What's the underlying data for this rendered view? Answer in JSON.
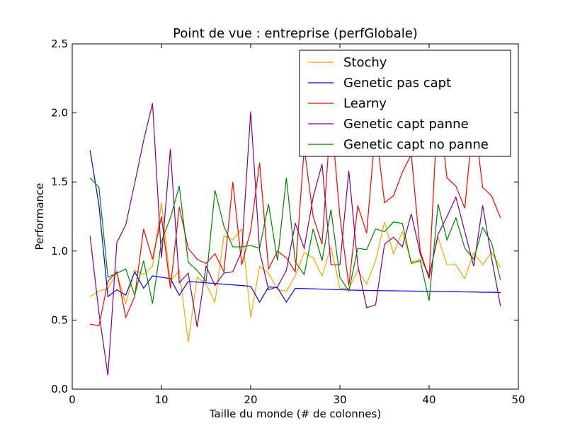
{
  "chart_data": {
    "type": "line",
    "title": "Point de vue : entreprise (perfGlobale)",
    "xlabel": "Taille du monde (# de colonnes)",
    "ylabel": "Performance",
    "xlim": [
      0,
      50
    ],
    "ylim": [
      0,
      2.5
    ],
    "xticks": [
      0,
      10,
      20,
      30,
      40,
      50
    ],
    "xtick_labels": [
      "0",
      "10",
      "20",
      "30",
      "40",
      "50"
    ],
    "yticks": [
      0,
      0.5,
      1,
      1.5,
      2,
      2.5
    ],
    "ytick_labels": [
      "0.0",
      "0.5",
      "1.0",
      "1.5",
      "2.0",
      "2.5"
    ],
    "grid": false,
    "legend_position": "top-right",
    "x": [
      2,
      3,
      4,
      5,
      6,
      7,
      8,
      9,
      10,
      11,
      12,
      13,
      14,
      15,
      16,
      17,
      18,
      19,
      20,
      21,
      22,
      23,
      24,
      25,
      26,
      27,
      28,
      29,
      30,
      31,
      32,
      33,
      34,
      35,
      36,
      37,
      38,
      39,
      40,
      41,
      42,
      43,
      44,
      45,
      46,
      47,
      48
    ],
    "series": [
      {
        "name": "Stochy",
        "color": "#ffa500",
        "values": [
          0.67,
          0.71,
          0.73,
          0.84,
          0.62,
          0.86,
          0.83,
          0.89,
          1.35,
          0.78,
          0.86,
          0.34,
          0.81,
          0.76,
          0.63,
          1.11,
          1.08,
          1.16,
          0.52,
          0.89,
          0.84,
          0.72,
          0.71,
          0.82,
          0.99,
          0.95,
          0.82,
          1.03,
          0.73,
          0.73,
          0.86,
          0.76,
          0.93,
          1.21,
          0.98,
          1.14,
          0.92,
          0.94,
          0.83,
          1.1,
          0.9,
          0.9,
          0.8,
          0.99,
          0.9,
          0.99,
          0.88
        ]
      },
      {
        "name": "Genetic pas capt",
        "color": "#0000ff",
        "values": [
          1.73,
          1.33,
          0.67,
          0.72,
          0.68,
          0.85,
          0.73,
          0.82,
          0.81,
          0.8,
          0.68,
          0.78,
          0.775,
          0.77,
          0.765,
          0.76,
          0.755,
          0.75,
          0.745,
          0.63,
          0.74,
          0.735,
          0.63,
          0.73,
          0.728,
          0.726,
          0.724,
          0.722,
          0.72,
          0.718,
          0.716,
          0.715,
          0.714,
          0.713,
          0.712,
          0.711,
          0.71,
          0.709,
          0.708,
          0.707,
          0.706,
          0.705,
          0.704,
          0.703,
          0.702,
          0.701,
          0.7
        ]
      },
      {
        "name": "Learny",
        "color": "#ff0000",
        "values": [
          0.47,
          0.46,
          0.78,
          0.85,
          0.52,
          0.67,
          1.16,
          0.94,
          1.25,
          0.73,
          1.32,
          1.02,
          0.94,
          0.91,
          0.98,
          0.85,
          1.5,
          0.9,
          1.15,
          1.64,
          0.87,
          1.0,
          0.95,
          0.85,
          1.75,
          1.25,
          1.05,
          2.0,
          1.25,
          0.75,
          1.33,
          1.13,
          1.9,
          1.35,
          1.4,
          1.57,
          1.7,
          1.0,
          0.8,
          2.1,
          1.53,
          1.47,
          1.31,
          2.0,
          1.46,
          1.4,
          1.24
        ]
      },
      {
        "name": "Genetic capt panne",
        "color": "#800080",
        "values": [
          1.11,
          0.55,
          0.1,
          1.06,
          1.19,
          1.49,
          1.8,
          2.07,
          0.95,
          1.74,
          0.77,
          0.84,
          0.45,
          0.89,
          0.75,
          0.84,
          0.85,
          1.0,
          2.01,
          1.0,
          0.72,
          0.74,
          0.86,
          1.2,
          1.02,
          1.39,
          1.63,
          0.9,
          0.9,
          1.58,
          0.9,
          0.59,
          0.61,
          1.05,
          1.1,
          1.03,
          1.27,
          0.98,
          0.81,
          1.12,
          1.25,
          1.39,
          1.14,
          0.89,
          1.33,
          0.95,
          0.6
        ]
      },
      {
        "name": "Genetic capt no panne",
        "color": "#008000",
        "values": [
          1.53,
          1.46,
          0.81,
          0.84,
          0.87,
          0.68,
          0.93,
          0.62,
          1.07,
          1.24,
          1.47,
          0.92,
          0.86,
          0.78,
          1.44,
          1.18,
          1.03,
          1.03,
          1.04,
          1.02,
          1.34,
          0.93,
          1.53,
          0.92,
          0.83,
          1.16,
          0.93,
          1.3,
          0.81,
          0.71,
          1.02,
          1.01,
          1.16,
          1.14,
          1.21,
          1.2,
          0.91,
          0.93,
          0.64,
          1.34,
          1.08,
          1.24,
          1.02,
          0.94,
          1.17,
          1.06,
          0.79
        ]
      }
    ]
  }
}
